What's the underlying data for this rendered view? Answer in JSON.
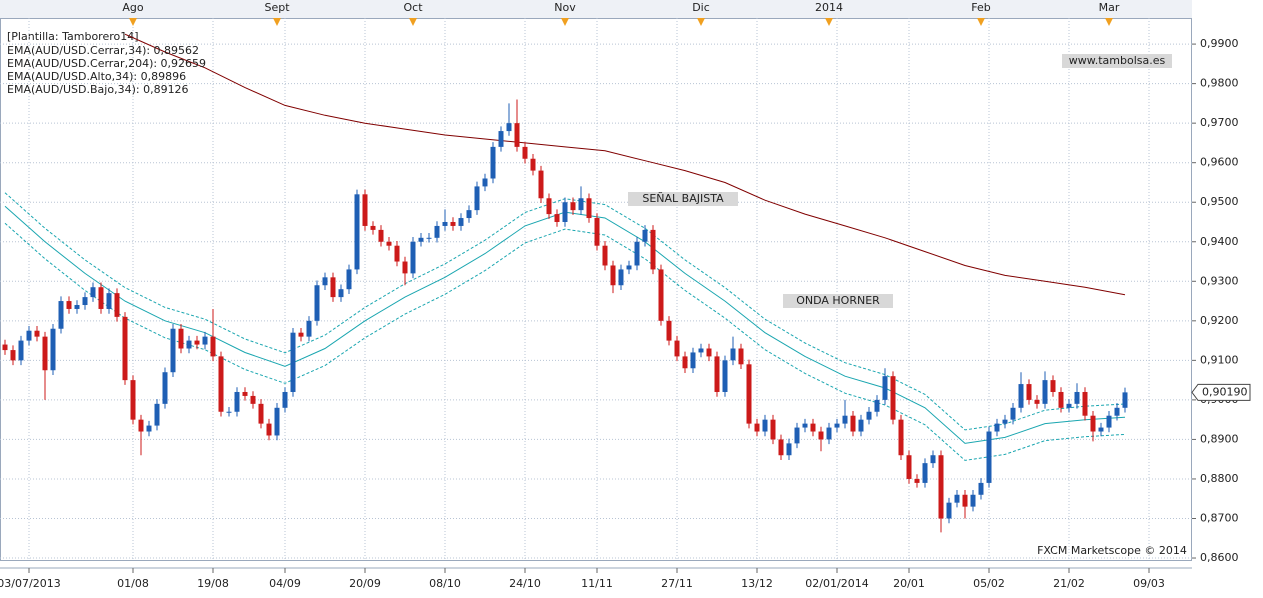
{
  "chart_data": {
    "type": "candlestick",
    "template": "[Plantilla: Tamborero14]",
    "annotations": [
      "www.tambolsa.es",
      "SEÑAL BAJISTA",
      "ONDA HORNER",
      "FXCM Marketscope © 2014"
    ],
    "last_price": {
      "value": 0.9019,
      "label": "0,90190"
    },
    "up_color": "#1f5fb4",
    "down_color": "#cc1a1a",
    "grid": true,
    "xlim": [
      -0.625,
      148.375
    ],
    "ylim": [
      0.8595,
      0.9966
    ],
    "yticks": [
      {
        "value": 0.86,
        "label": "0,8600"
      },
      {
        "value": 0.87,
        "label": "0,8700"
      },
      {
        "value": 0.88,
        "label": "0,8800"
      },
      {
        "value": 0.89,
        "label": "0,8900"
      },
      {
        "value": 0.9,
        "label": "0,9000"
      },
      {
        "value": 0.91,
        "label": "0,9100"
      },
      {
        "value": 0.92,
        "label": "0,9200"
      },
      {
        "value": 0.93,
        "label": "0,9300"
      },
      {
        "value": 0.94,
        "label": "0,9400"
      },
      {
        "value": 0.95,
        "label": "0,9500"
      },
      {
        "value": 0.96,
        "label": "0,9600"
      },
      {
        "value": 0.97,
        "label": "0,9700"
      },
      {
        "value": 0.98,
        "label": "0,9800"
      },
      {
        "value": 0.99,
        "label": "0,9900"
      }
    ],
    "xticks": [
      {
        "value": 3,
        "label": "03/07/2013"
      },
      {
        "value": 16,
        "label": "01/08"
      },
      {
        "value": 26,
        "label": "19/08"
      },
      {
        "value": 35,
        "label": "04/09"
      },
      {
        "value": 45,
        "label": "20/09"
      },
      {
        "value": 55,
        "label": "08/10"
      },
      {
        "value": 65,
        "label": "24/10"
      },
      {
        "value": 74,
        "label": "11/11"
      },
      {
        "value": 84,
        "label": "27/11"
      },
      {
        "value": 94,
        "label": "13/12"
      },
      {
        "value": 104,
        "label": "02/01/2014"
      },
      {
        "value": 113,
        "label": "20/01"
      },
      {
        "value": 123,
        "label": "05/02"
      },
      {
        "value": 133,
        "label": "21/02"
      },
      {
        "value": 143,
        "label": "09/03"
      }
    ],
    "top_ticks": [
      {
        "value": 16,
        "label": "Ago"
      },
      {
        "value": 34,
        "label": "Sept"
      },
      {
        "value": 51,
        "label": "Oct"
      },
      {
        "value": 70,
        "label": "Nov"
      },
      {
        "value": 87,
        "label": "Dic"
      },
      {
        "value": 103,
        "label": "2014"
      },
      {
        "value": 122,
        "label": "Feb"
      },
      {
        "value": 138,
        "label": "Mar"
      }
    ],
    "candles": {
      "open": [
        0.914,
        0.9126,
        0.91,
        0.915,
        0.9175,
        0.916,
        0.9075,
        0.918,
        0.925,
        0.923,
        0.924,
        0.926,
        0.9285,
        0.923,
        0.927,
        0.921,
        0.905,
        0.895,
        0.892,
        0.8935,
        0.899,
        0.907,
        0.918,
        0.913,
        0.915,
        0.914,
        0.916,
        0.911,
        0.897,
        0.897,
        0.902,
        0.901,
        0.899,
        0.894,
        0.891,
        0.898,
        0.902,
        0.917,
        0.916,
        0.92,
        0.929,
        0.931,
        0.926,
        0.928,
        0.933,
        0.952,
        0.944,
        0.943,
        0.94,
        0.939,
        0.935,
        0.932,
        0.94,
        0.941,
        0.941,
        0.944,
        0.945,
        0.944,
        0.946,
        0.948,
        0.954,
        0.956,
        0.964,
        0.968,
        0.97,
        0.964,
        0.961,
        0.958,
        0.951,
        0.947,
        0.945,
        0.95,
        0.948,
        0.951,
        0.946,
        0.939,
        0.934,
        0.929,
        0.933,
        0.934,
        0.94,
        0.943,
        0.933,
        0.92,
        0.915,
        0.911,
        0.908,
        0.912,
        0.913,
        0.911,
        0.902,
        0.91,
        0.913,
        0.909,
        0.894,
        0.892,
        0.895,
        0.89,
        0.886,
        0.889,
        0.893,
        0.894,
        0.892,
        0.89,
        0.893,
        0.894,
        0.896,
        0.892,
        0.895,
        0.897,
        0.9,
        0.906,
        0.895,
        0.886,
        0.88,
        0.879,
        0.884,
        0.886,
        0.87,
        0.874,
        0.876,
        0.873,
        0.876,
        0.879,
        0.892,
        0.894,
        0.895,
        0.898,
        0.904,
        0.9,
        0.899,
        0.905,
        0.902,
        0.898,
        0.899,
        0.902,
        0.896,
        0.892,
        0.893,
        0.896,
        0.898
      ],
      "high": [
        0.9152,
        0.9138,
        0.9162,
        0.9187,
        0.9187,
        0.9172,
        0.9192,
        0.9262,
        0.9262,
        0.9252,
        0.9272,
        0.9297,
        0.9297,
        0.9282,
        0.9282,
        0.9222,
        0.9062,
        0.8962,
        0.8947,
        0.9002,
        0.9082,
        0.9192,
        0.9192,
        0.9162,
        0.9162,
        0.9172,
        0.923,
        0.9122,
        0.8982,
        0.9032,
        0.9032,
        0.9022,
        0.9002,
        0.8952,
        0.8992,
        0.9032,
        0.9182,
        0.9182,
        0.9212,
        0.9302,
        0.9322,
        0.9322,
        0.9292,
        0.9342,
        0.9532,
        0.9532,
        0.9452,
        0.9442,
        0.9412,
        0.9402,
        0.9362,
        0.9412,
        0.9422,
        0.9422,
        0.9452,
        0.9482,
        0.9462,
        0.9472,
        0.9492,
        0.9552,
        0.9572,
        0.9652,
        0.9692,
        0.975,
        0.976,
        0.9652,
        0.9622,
        0.9592,
        0.9522,
        0.9482,
        0.9512,
        0.9512,
        0.954,
        0.9522,
        0.9472,
        0.9402,
        0.9352,
        0.9342,
        0.9352,
        0.9412,
        0.9442,
        0.9442,
        0.9342,
        0.9212,
        0.9162,
        0.9122,
        0.9132,
        0.9142,
        0.9142,
        0.9122,
        0.9112,
        0.916,
        0.9142,
        0.9102,
        0.8952,
        0.8962,
        0.8962,
        0.8912,
        0.8902,
        0.8942,
        0.8952,
        0.8952,
        0.8932,
        0.8942,
        0.8952,
        0.9,
        0.8972,
        0.8962,
        0.8982,
        0.9012,
        0.908,
        0.9072,
        0.8962,
        0.8872,
        0.8812,
        0.8852,
        0.8872,
        0.8872,
        0.8752,
        0.8772,
        0.8772,
        0.8772,
        0.8802,
        0.8932,
        0.8952,
        0.8962,
        0.8992,
        0.907,
        0.9052,
        0.9012,
        0.9072,
        0.9062,
        0.9032,
        0.9002,
        0.9042,
        0.9032,
        0.8972,
        0.8942,
        0.8972,
        0.8992,
        0.9031
      ],
      "low": [
        0.9114,
        0.9088,
        0.9088,
        0.9138,
        0.9148,
        0.9,
        0.9063,
        0.9168,
        0.9218,
        0.9218,
        0.9228,
        0.9248,
        0.9218,
        0.9218,
        0.9198,
        0.9038,
        0.8938,
        0.886,
        0.8908,
        0.8923,
        0.8978,
        0.9058,
        0.9118,
        0.9118,
        0.9128,
        0.9128,
        0.9098,
        0.8958,
        0.8958,
        0.8958,
        0.8998,
        0.8978,
        0.8928,
        0.8898,
        0.8898,
        0.8968,
        0.9008,
        0.9148,
        0.9148,
        0.9188,
        0.9278,
        0.9248,
        0.9248,
        0.9268,
        0.9318,
        0.9428,
        0.9418,
        0.9388,
        0.9378,
        0.9338,
        0.929,
        0.9308,
        0.9388,
        0.9398,
        0.9398,
        0.9428,
        0.9428,
        0.9428,
        0.9448,
        0.9468,
        0.9528,
        0.9548,
        0.9628,
        0.9668,
        0.9628,
        0.9598,
        0.9568,
        0.9498,
        0.9458,
        0.9438,
        0.9438,
        0.9468,
        0.9468,
        0.9448,
        0.9378,
        0.9328,
        0.927,
        0.9278,
        0.9318,
        0.9328,
        0.9388,
        0.9318,
        0.9188,
        0.9138,
        0.9098,
        0.9068,
        0.9068,
        0.9108,
        0.9098,
        0.9008,
        0.9008,
        0.9088,
        0.9078,
        0.8928,
        0.8908,
        0.8908,
        0.8888,
        0.8848,
        0.8848,
        0.8878,
        0.8918,
        0.8908,
        0.887,
        0.8888,
        0.8918,
        0.8928,
        0.8908,
        0.8908,
        0.8938,
        0.8958,
        0.8988,
        0.8938,
        0.8848,
        0.8788,
        0.8778,
        0.8778,
        0.8828,
        0.8665,
        0.8688,
        0.8728,
        0.87,
        0.8718,
        0.8748,
        0.8778,
        0.8908,
        0.8928,
        0.8938,
        0.8968,
        0.8988,
        0.8978,
        0.8978,
        0.9008,
        0.8968,
        0.8968,
        0.8978,
        0.8948,
        0.8895,
        0.8908,
        0.8918,
        0.8948,
        0.8968
      ],
      "close": [
        0.9126,
        0.91,
        0.915,
        0.9175,
        0.916,
        0.9075,
        0.918,
        0.925,
        0.923,
        0.924,
        0.926,
        0.9285,
        0.923,
        0.927,
        0.921,
        0.905,
        0.895,
        0.892,
        0.8935,
        0.899,
        0.907,
        0.918,
        0.913,
        0.915,
        0.914,
        0.916,
        0.911,
        0.897,
        0.897,
        0.902,
        0.901,
        0.899,
        0.894,
        0.891,
        0.898,
        0.902,
        0.917,
        0.916,
        0.92,
        0.929,
        0.931,
        0.926,
        0.928,
        0.933,
        0.952,
        0.944,
        0.943,
        0.94,
        0.939,
        0.935,
        0.932,
        0.94,
        0.941,
        0.941,
        0.944,
        0.945,
        0.944,
        0.946,
        0.948,
        0.954,
        0.956,
        0.964,
        0.968,
        0.97,
        0.964,
        0.961,
        0.958,
        0.951,
        0.947,
        0.945,
        0.95,
        0.948,
        0.951,
        0.946,
        0.939,
        0.934,
        0.929,
        0.933,
        0.934,
        0.94,
        0.943,
        0.933,
        0.92,
        0.915,
        0.911,
        0.908,
        0.912,
        0.913,
        0.911,
        0.902,
        0.91,
        0.913,
        0.909,
        0.894,
        0.892,
        0.895,
        0.89,
        0.886,
        0.889,
        0.893,
        0.894,
        0.892,
        0.89,
        0.893,
        0.894,
        0.896,
        0.892,
        0.895,
        0.897,
        0.9,
        0.906,
        0.895,
        0.886,
        0.88,
        0.879,
        0.884,
        0.886,
        0.87,
        0.874,
        0.876,
        0.873,
        0.876,
        0.879,
        0.892,
        0.894,
        0.895,
        0.898,
        0.904,
        0.9,
        0.899,
        0.905,
        0.902,
        0.898,
        0.899,
        0.902,
        0.896,
        0.892,
        0.893,
        0.896,
        0.898,
        0.9019
      ]
    },
    "lines": [
      {
        "name": "EMA(AUD/USD.Cerrar,34): 0,89562",
        "color": "#1aa6b0",
        "dash": false,
        "x": [
          0,
          5,
          10,
          15,
          20,
          25,
          30,
          35,
          40,
          45,
          50,
          55,
          60,
          65,
          70,
          75,
          80,
          85,
          90,
          95,
          100,
          105,
          110,
          115,
          120,
          125,
          130,
          135,
          140
        ],
        "values": [
          0.949,
          0.94,
          0.932,
          0.925,
          0.92,
          0.917,
          0.912,
          0.9085,
          0.913,
          0.92,
          0.926,
          0.931,
          0.937,
          0.944,
          0.9475,
          0.946,
          0.94,
          0.932,
          0.925,
          0.917,
          0.911,
          0.906,
          0.903,
          0.898,
          0.889,
          0.8905,
          0.894,
          0.895,
          0.89562
        ]
      },
      {
        "name": "EMA(AUD/USD.Cerrar,204): 0,92659",
        "color": "#800000",
        "dash": false,
        "x": [
          15,
          20,
          25,
          30,
          35,
          40,
          45,
          50,
          55,
          60,
          65,
          70,
          75,
          80,
          85,
          90,
          95,
          100,
          105,
          110,
          115,
          120,
          125,
          130,
          135,
          140
        ],
        "values": [
          0.9925,
          0.988,
          0.984,
          0.979,
          0.9745,
          0.972,
          0.97,
          0.9685,
          0.967,
          0.966,
          0.965,
          0.964,
          0.963,
          0.9605,
          0.958,
          0.955,
          0.9505,
          0.947,
          0.944,
          0.941,
          0.9375,
          0.934,
          0.9315,
          0.93,
          0.9285,
          0.92659
        ]
      },
      {
        "name": "EMA(AUD/USD.Alto,34): 0,89896",
        "color": "#1aa6b0",
        "dash": true,
        "x": [
          0,
          5,
          10,
          15,
          20,
          25,
          30,
          35,
          40,
          45,
          50,
          55,
          60,
          65,
          70,
          75,
          80,
          85,
          90,
          95,
          100,
          105,
          110,
          115,
          120,
          125,
          130,
          135,
          140
        ],
        "values": [
          0.9524,
          0.9434,
          0.9354,
          0.9284,
          0.9234,
          0.9204,
          0.9154,
          0.9119,
          0.9164,
          0.9234,
          0.9294,
          0.9344,
          0.9404,
          0.9474,
          0.9509,
          0.9494,
          0.9434,
          0.9354,
          0.9284,
          0.9204,
          0.9144,
          0.9094,
          0.9064,
          0.9014,
          0.8924,
          0.8939,
          0.8974,
          0.8984,
          0.89896
        ]
      },
      {
        "name": "EMA(AUD/USD.Bajo,34): 0,89126",
        "color": "#1aa6b0",
        "dash": true,
        "x": [
          0,
          5,
          10,
          15,
          20,
          25,
          30,
          35,
          40,
          45,
          50,
          55,
          60,
          65,
          70,
          75,
          80,
          85,
          90,
          95,
          100,
          105,
          110,
          115,
          120,
          125,
          130,
          135,
          140
        ],
        "values": [
          0.9447,
          0.9357,
          0.9277,
          0.9207,
          0.9157,
          0.9127,
          0.9077,
          0.9042,
          0.9087,
          0.9157,
          0.9217,
          0.9267,
          0.9327,
          0.9397,
          0.9432,
          0.9417,
          0.9357,
          0.9277,
          0.9207,
          0.9127,
          0.9067,
          0.9017,
          0.8987,
          0.8937,
          0.8847,
          0.8862,
          0.8897,
          0.8907,
          0.89126
        ]
      }
    ]
  }
}
